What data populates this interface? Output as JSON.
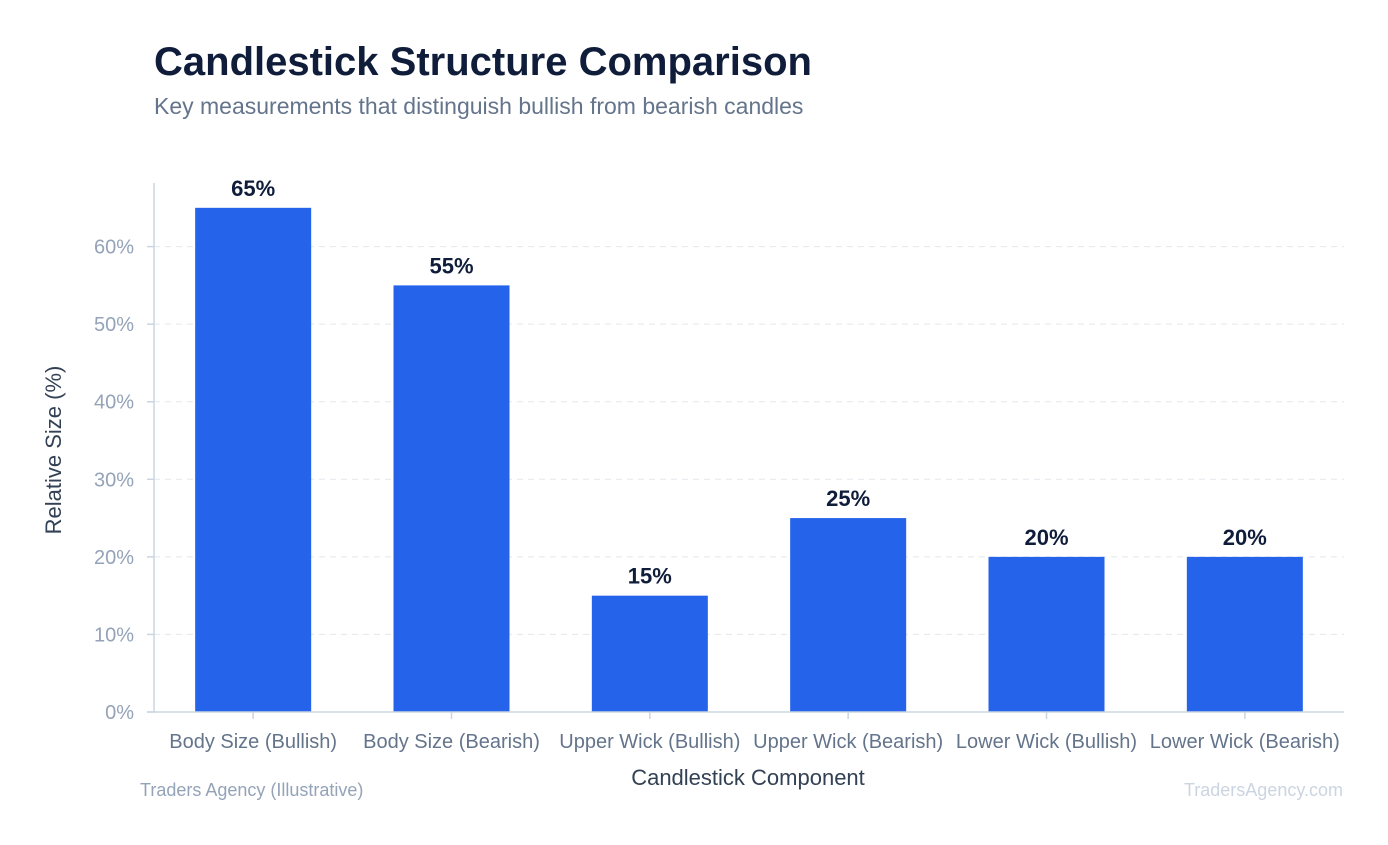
{
  "colors": {
    "bar": "#2563EB",
    "title": "#0F1D3B",
    "subtitle": "#64748B",
    "axis_title": "#334155",
    "tick_label": "#94A3B8",
    "category_label": "#64748B",
    "value_label": "#0F1D3B",
    "grid": "#E5E7EB",
    "axis_line": "#CBD5E1",
    "footer": "#94A3B8",
    "watermark": "#CBD5E1"
  },
  "footer": {
    "source": "Traders Agency (Illustrative)",
    "brand": "TradersAgency.com"
  },
  "chart_data": {
    "type": "bar",
    "title": "Candlestick Structure Comparison",
    "subtitle": "Key measurements that distinguish bullish from bearish candles",
    "xlabel": "Candlestick Component",
    "ylabel": "Relative Size (%)",
    "categories": [
      "Body Size (Bullish)",
      "Body Size (Bearish)",
      "Upper Wick (Bullish)",
      "Upper Wick (Bearish)",
      "Lower Wick (Bullish)",
      "Lower Wick (Bearish)"
    ],
    "values": [
      65,
      55,
      15,
      25,
      20,
      20
    ],
    "value_labels": [
      "65%",
      "55%",
      "15%",
      "25%",
      "20%",
      "20%"
    ],
    "ylim": [
      0,
      68.2
    ],
    "yticks": [
      0,
      10,
      20,
      30,
      40,
      50,
      60
    ],
    "ytick_labels": [
      "0%",
      "10%",
      "20%",
      "30%",
      "40%",
      "50%",
      "60%"
    ],
    "grid": true,
    "legend": "none"
  }
}
